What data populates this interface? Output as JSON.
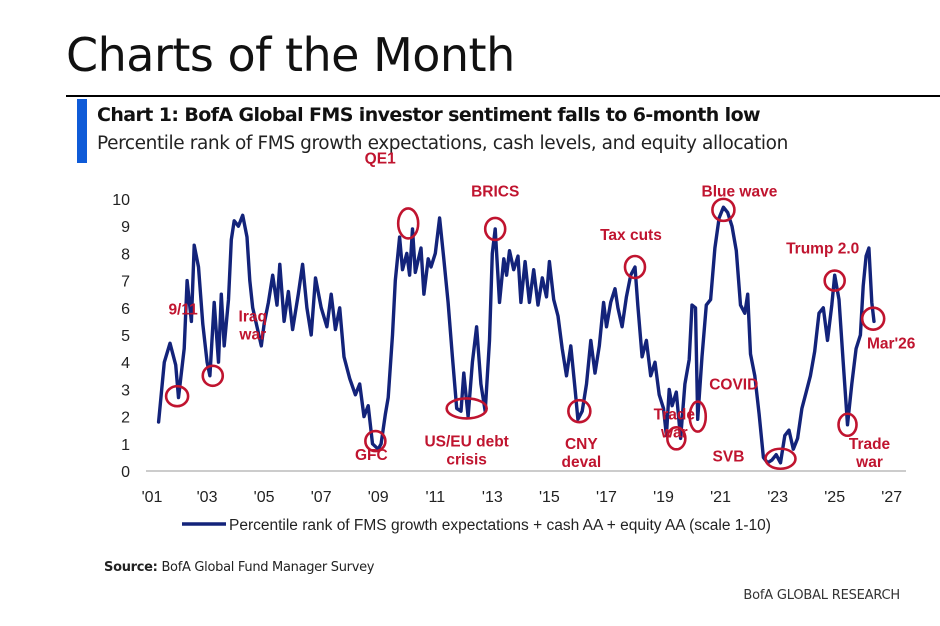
{
  "page": {
    "title": "Charts of the Month",
    "accent_color": "#0f5bd8"
  },
  "chart_data": {
    "type": "line",
    "title": "Chart 1: BofA Global FMS investor sentiment falls to 6-month low",
    "subtitle": "Percentile rank of FMS growth expectations, cash levels, and equity allocation",
    "xlabel": "",
    "ylabel": "",
    "xlim": [
      2001,
      2027.5
    ],
    "ylim": [
      0,
      10
    ],
    "y_ticks": [
      "0",
      "1",
      "2",
      "3",
      "4",
      "5",
      "6",
      "7",
      "8",
      "9",
      "10"
    ],
    "x_ticks": [
      {
        "year": 2001,
        "label": "'01"
      },
      {
        "year": 2003,
        "label": "'03"
      },
      {
        "year": 2005,
        "label": "'05"
      },
      {
        "year": 2007,
        "label": "'07"
      },
      {
        "year": 2009,
        "label": "'09"
      },
      {
        "year": 2011,
        "label": "'11"
      },
      {
        "year": 2013,
        "label": "'13"
      },
      {
        "year": 2015,
        "label": "'15"
      },
      {
        "year": 2017,
        "label": "'17"
      },
      {
        "year": 2019,
        "label": "'19"
      },
      {
        "year": 2021,
        "label": "'21"
      },
      {
        "year": 2023,
        "label": "'23"
      },
      {
        "year": 2025,
        "label": "'25"
      },
      {
        "year": 2027,
        "label": "'27"
      }
    ],
    "grid": false,
    "legend_position": "bottom-center",
    "series_color": "#13237a",
    "annotation_color": "#c0142f",
    "series": [
      {
        "name": "Percentile rank of FMS growth expectations + cash AA + equity AA (scale 1-10)",
        "points": [
          [
            2001.3,
            1.8
          ],
          [
            2001.5,
            4.0
          ],
          [
            2001.7,
            4.7
          ],
          [
            2001.9,
            3.9
          ],
          [
            2002.0,
            2.7
          ],
          [
            2002.2,
            4.5
          ],
          [
            2002.3,
            7.0
          ],
          [
            2002.45,
            5.5
          ],
          [
            2002.55,
            8.3
          ],
          [
            2002.7,
            7.5
          ],
          [
            2002.85,
            5.4
          ],
          [
            2003.0,
            4.0
          ],
          [
            2003.1,
            3.5
          ],
          [
            2003.25,
            6.2
          ],
          [
            2003.4,
            4.0
          ],
          [
            2003.5,
            6.5
          ],
          [
            2003.6,
            4.6
          ],
          [
            2003.75,
            6.3
          ],
          [
            2003.85,
            8.5
          ],
          [
            2003.95,
            9.2
          ],
          [
            2004.1,
            9.0
          ],
          [
            2004.25,
            9.4
          ],
          [
            2004.4,
            8.6
          ],
          [
            2004.5,
            7.0
          ],
          [
            2004.6,
            6.0
          ],
          [
            2004.75,
            5.3
          ],
          [
            2004.9,
            4.6
          ],
          [
            2005.0,
            5.4
          ],
          [
            2005.15,
            6.2
          ],
          [
            2005.3,
            7.2
          ],
          [
            2005.45,
            6.1
          ],
          [
            2005.55,
            7.6
          ],
          [
            2005.7,
            5.5
          ],
          [
            2005.85,
            6.6
          ],
          [
            2006.0,
            5.2
          ],
          [
            2006.2,
            6.5
          ],
          [
            2006.35,
            7.6
          ],
          [
            2006.5,
            6.0
          ],
          [
            2006.65,
            5.0
          ],
          [
            2006.8,
            7.1
          ],
          [
            2007.0,
            6.0
          ],
          [
            2007.2,
            5.3
          ],
          [
            2007.35,
            6.5
          ],
          [
            2007.5,
            5.2
          ],
          [
            2007.65,
            6.0
          ],
          [
            2007.8,
            4.2
          ],
          [
            2008.0,
            3.4
          ],
          [
            2008.2,
            2.8
          ],
          [
            2008.35,
            3.2
          ],
          [
            2008.5,
            2.0
          ],
          [
            2008.65,
            2.4
          ],
          [
            2008.8,
            1.0
          ],
          [
            2009.0,
            0.8
          ],
          [
            2009.1,
            1.0
          ],
          [
            2009.25,
            2.1
          ],
          [
            2009.35,
            2.7
          ],
          [
            2009.5,
            5.0
          ],
          [
            2009.6,
            7.0
          ],
          [
            2009.75,
            8.6
          ],
          [
            2009.85,
            7.4
          ],
          [
            2010.0,
            8.0
          ],
          [
            2010.1,
            7.2
          ],
          [
            2010.2,
            8.9
          ],
          [
            2010.3,
            7.3
          ],
          [
            2010.5,
            8.2
          ],
          [
            2010.6,
            6.5
          ],
          [
            2010.75,
            7.8
          ],
          [
            2010.85,
            7.5
          ],
          [
            2011.0,
            8.0
          ],
          [
            2011.15,
            9.3
          ],
          [
            2011.3,
            7.8
          ],
          [
            2011.45,
            6.2
          ],
          [
            2011.6,
            4.2
          ],
          [
            2011.75,
            2.3
          ],
          [
            2011.9,
            2.2
          ],
          [
            2012.0,
            3.6
          ],
          [
            2012.15,
            2.0
          ],
          [
            2012.3,
            4.0
          ],
          [
            2012.45,
            5.3
          ],
          [
            2012.6,
            3.2
          ],
          [
            2012.75,
            2.2
          ],
          [
            2012.9,
            4.8
          ],
          [
            2013.0,
            8.0
          ],
          [
            2013.1,
            8.9
          ],
          [
            2013.25,
            6.2
          ],
          [
            2013.4,
            7.8
          ],
          [
            2013.5,
            7.2
          ],
          [
            2013.6,
            8.1
          ],
          [
            2013.75,
            7.4
          ],
          [
            2013.9,
            7.9
          ],
          [
            2014.0,
            6.2
          ],
          [
            2014.15,
            7.7
          ],
          [
            2014.3,
            6.2
          ],
          [
            2014.45,
            7.4
          ],
          [
            2014.6,
            6.1
          ],
          [
            2014.75,
            7.1
          ],
          [
            2014.9,
            6.4
          ],
          [
            2015.0,
            7.7
          ],
          [
            2015.15,
            6.3
          ],
          [
            2015.3,
            5.7
          ],
          [
            2015.45,
            4.5
          ],
          [
            2015.6,
            3.5
          ],
          [
            2015.75,
            4.6
          ],
          [
            2015.9,
            3.0
          ],
          [
            2016.0,
            1.9
          ],
          [
            2016.15,
            2.2
          ],
          [
            2016.3,
            3.2
          ],
          [
            2016.45,
            4.8
          ],
          [
            2016.6,
            3.6
          ],
          [
            2016.75,
            4.6
          ],
          [
            2016.9,
            6.2
          ],
          [
            2017.0,
            5.3
          ],
          [
            2017.15,
            6.2
          ],
          [
            2017.3,
            6.7
          ],
          [
            2017.4,
            6.0
          ],
          [
            2017.55,
            5.3
          ],
          [
            2017.7,
            6.4
          ],
          [
            2017.85,
            7.2
          ],
          [
            2018.0,
            7.5
          ],
          [
            2018.1,
            6.1
          ],
          [
            2018.25,
            4.2
          ],
          [
            2018.4,
            4.8
          ],
          [
            2018.55,
            3.5
          ],
          [
            2018.7,
            4.0
          ],
          [
            2018.85,
            2.8
          ],
          [
            2019.0,
            2.3
          ],
          [
            2019.1,
            1.3
          ],
          [
            2019.2,
            3.0
          ],
          [
            2019.3,
            2.4
          ],
          [
            2019.45,
            2.9
          ],
          [
            2019.6,
            1.2
          ],
          [
            2019.75,
            3.2
          ],
          [
            2019.9,
            4.1
          ],
          [
            2020.0,
            6.1
          ],
          [
            2020.12,
            6.0
          ],
          [
            2020.2,
            1.9
          ],
          [
            2020.35,
            4.2
          ],
          [
            2020.5,
            6.1
          ],
          [
            2020.65,
            6.3
          ],
          [
            2020.8,
            8.2
          ],
          [
            2020.95,
            9.3
          ],
          [
            2021.1,
            9.7
          ],
          [
            2021.25,
            9.5
          ],
          [
            2021.4,
            9.0
          ],
          [
            2021.55,
            8.1
          ],
          [
            2021.7,
            6.1
          ],
          [
            2021.85,
            5.8
          ],
          [
            2021.95,
            6.5
          ],
          [
            2022.05,
            4.3
          ],
          [
            2022.2,
            3.5
          ],
          [
            2022.35,
            2.1
          ],
          [
            2022.5,
            0.5
          ],
          [
            2022.65,
            0.3
          ],
          [
            2022.8,
            0.4
          ],
          [
            2022.95,
            0.6
          ],
          [
            2023.1,
            0.3
          ],
          [
            2023.25,
            1.3
          ],
          [
            2023.4,
            1.5
          ],
          [
            2023.55,
            0.8
          ],
          [
            2023.7,
            1.2
          ],
          [
            2023.85,
            2.3
          ],
          [
            2024.0,
            2.9
          ],
          [
            2024.15,
            3.5
          ],
          [
            2024.3,
            4.4
          ],
          [
            2024.45,
            5.8
          ],
          [
            2024.6,
            6.0
          ],
          [
            2024.75,
            4.8
          ],
          [
            2024.9,
            6.1
          ],
          [
            2025.0,
            7.2
          ],
          [
            2025.15,
            6.3
          ],
          [
            2025.3,
            4.0
          ],
          [
            2025.45,
            1.7
          ],
          [
            2025.6,
            3.2
          ],
          [
            2025.75,
            4.5
          ],
          [
            2025.9,
            5.0
          ],
          [
            2026.0,
            6.8
          ],
          [
            2026.1,
            7.9
          ],
          [
            2026.2,
            8.2
          ],
          [
            2026.3,
            6.2
          ],
          [
            2026.38,
            5.5
          ]
        ]
      }
    ],
    "annotations": [
      {
        "label": "9/11",
        "x": 2001.95,
        "y": 2.75
      },
      {
        "label": "Iraq war",
        "x": 2003.2,
        "y": 3.5
      },
      {
        "label": "GFC",
        "x": 2008.9,
        "y": 1.1
      },
      {
        "label": "QE1",
        "x": 2010.05,
        "y": 9.1
      },
      {
        "label": "US/EU debt crisis",
        "x": 2012.1,
        "y": 2.3
      },
      {
        "label": "BRICS",
        "x": 2013.1,
        "y": 8.9
      },
      {
        "label": "CNY deval",
        "x": 2016.05,
        "y": 2.2
      },
      {
        "label": "Tax cuts",
        "x": 2018.0,
        "y": 7.5
      },
      {
        "label": "Trade war",
        "x": 2019.45,
        "y": 1.2
      },
      {
        "label": "COVID",
        "x": 2020.2,
        "y": 2.0
      },
      {
        "label": "Blue wave",
        "x": 2021.1,
        "y": 9.6
      },
      {
        "label": "SVB",
        "x": 2023.1,
        "y": 0.45
      },
      {
        "label": "Trump 2.0",
        "x": 2025.0,
        "y": 7.0
      },
      {
        "label": "Trade war",
        "x": 2025.45,
        "y": 1.7
      },
      {
        "label": "Mar'26",
        "x": 2026.35,
        "y": 5.6
      }
    ]
  },
  "source": {
    "label": "Source:",
    "text": "BofA Global Fund Manager Survey"
  },
  "footer": {
    "brand": "BofA GLOBAL RESEARCH"
  }
}
